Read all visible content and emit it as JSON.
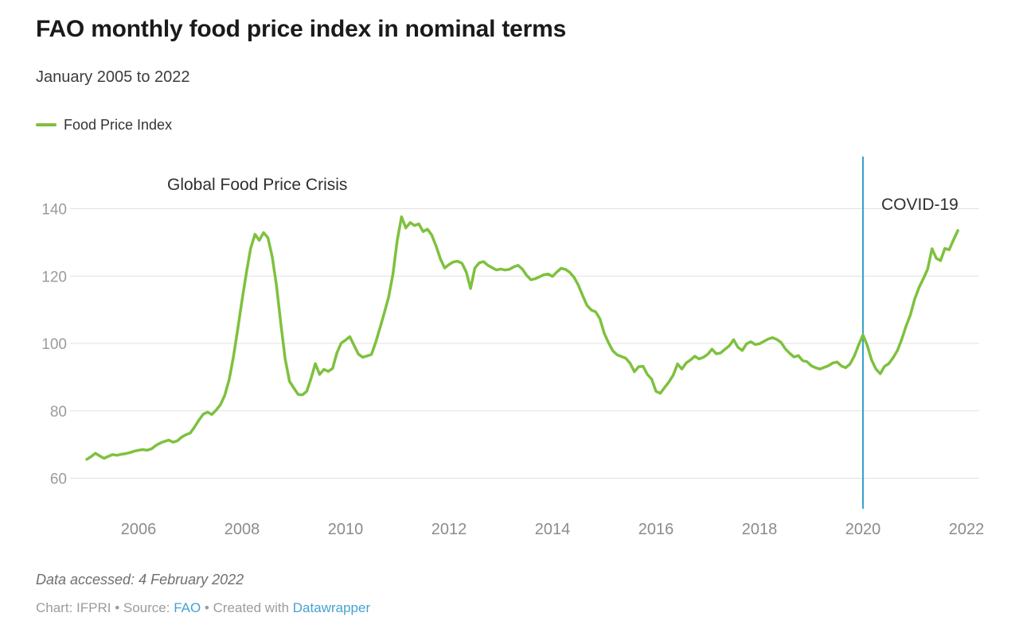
{
  "header": {
    "title": "FAO monthly food price index in nominal terms",
    "subtitle": "January 2005 to 2022"
  },
  "legend": {
    "items": [
      {
        "label": "Food Price Index",
        "color": "#7ec13e"
      }
    ]
  },
  "footer": {
    "accessed": "Data accessed: 4 February 2022",
    "byline": {
      "credit": "Chart: IFPRI",
      "sep1": " • ",
      "source_label": "Source: ",
      "source_link": "FAO",
      "sep2": " • ",
      "created_label": "Created with ",
      "tool_link": "Datawrapper"
    }
  },
  "colors": {
    "line_green": "#7ec13e",
    "covid_blue": "#36a2cb",
    "link_blue": "#45a2d2",
    "gridline": "#e1e1e1",
    "y_tick": "#9b9b9b",
    "x_tick": "#8c8c8c"
  },
  "chart_data": {
    "type": "line",
    "title": "FAO monthly food price index in nominal terms",
    "subtitle": "January 2005 to 2022",
    "xlabel": "",
    "ylabel": "",
    "x_start": "2005-01",
    "x_end": "2021-11",
    "frequency": "monthly",
    "x_tick_labels": [
      "2006",
      "2008",
      "2010",
      "2012",
      "2014",
      "2016",
      "2018",
      "2020",
      "2022"
    ],
    "x_tick_years": [
      2006,
      2008,
      2010,
      2012,
      2014,
      2016,
      2018,
      2020,
      2022
    ],
    "y_ticks": [
      60,
      80,
      100,
      120,
      140
    ],
    "ylim": [
      55,
      152
    ],
    "grid": "horizontal",
    "legend_position": "top-left",
    "vertical_line": {
      "at": "2020-01",
      "label": "COVID-19",
      "color": "#36a2cb"
    },
    "text_annotations": [
      {
        "text": "Global Food Price Crisis",
        "near": "2008-06"
      }
    ],
    "series": [
      {
        "name": "Food Price Index",
        "color": "#7ec13e",
        "values": [
          65.6,
          66.4,
          67.4,
          66.6,
          65.9,
          66.5,
          67.0,
          66.8,
          67.1,
          67.3,
          67.6,
          68.0,
          68.3,
          68.5,
          68.3,
          68.7,
          69.7,
          70.4,
          70.9,
          71.3,
          70.7,
          71.1,
          72.2,
          72.9,
          73.4,
          75.2,
          77.2,
          79.0,
          79.6,
          78.9,
          80.2,
          81.8,
          84.6,
          89.2,
          96.0,
          104.2,
          112.8,
          120.8,
          128.2,
          132.4,
          130.6,
          132.9,
          131.4,
          125.8,
          117.2,
          105.8,
          95.4,
          88.8,
          86.8,
          84.9,
          84.7,
          85.8,
          89.6,
          94.0,
          90.8,
          92.3,
          91.7,
          92.6,
          97.2,
          100.1,
          101.0,
          102.0,
          99.4,
          96.8,
          95.9,
          96.3,
          96.7,
          100.3,
          104.6,
          109.1,
          113.8,
          120.6,
          130.6,
          137.6,
          134.3,
          135.9,
          135.0,
          135.5,
          133.2,
          133.9,
          132.2,
          128.9,
          125.1,
          122.4,
          123.4,
          124.2,
          124.4,
          123.8,
          121.2,
          116.3,
          122.4,
          123.9,
          124.3,
          123.2,
          122.5,
          121.8,
          122.1,
          121.8,
          122.0,
          122.7,
          123.2,
          122.1,
          120.2,
          118.9,
          119.2,
          119.8,
          120.4,
          120.6,
          119.9,
          121.2,
          122.3,
          122.0,
          121.1,
          119.6,
          117.3,
          114.2,
          111.3,
          109.9,
          109.4,
          107.3,
          103.0,
          100.2,
          97.8,
          96.6,
          96.1,
          95.6,
          94.1,
          91.6,
          93.1,
          93.2,
          90.8,
          89.4,
          85.8,
          85.2,
          86.9,
          88.6,
          90.6,
          93.9,
          92.4,
          94.2,
          95.1,
          96.2,
          95.4,
          95.9,
          96.8,
          98.3,
          96.9,
          97.2,
          98.3,
          99.3,
          101.1,
          98.9,
          97.9,
          99.9,
          100.5,
          99.7,
          99.9,
          100.6,
          101.3,
          101.7,
          101.2,
          100.3,
          98.4,
          97.1,
          96.0,
          96.4,
          94.9,
          94.6,
          93.4,
          92.8,
          92.4,
          92.9,
          93.4,
          94.2,
          94.5,
          93.3,
          92.8,
          93.9,
          96.3,
          99.6,
          102.5,
          99.4,
          95.1,
          92.4,
          91.0,
          93.2,
          94.0,
          95.8,
          97.9,
          101.3,
          105.2,
          108.5,
          113.2,
          116.6,
          119.2,
          122.1,
          128.1,
          125.3,
          124.6,
          128.2,
          127.8,
          130.8,
          133.5
        ]
      }
    ]
  }
}
